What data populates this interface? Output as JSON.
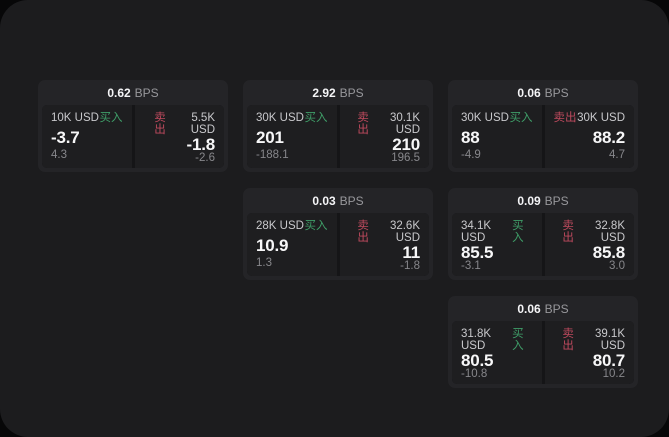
{
  "labels": {
    "bps_unit": "BPS",
    "buy": "买入",
    "sell": "卖出"
  },
  "colors": {
    "page_background": "#070708",
    "panel_background": "#1c1c1e",
    "card_background": "#242427",
    "tile_background": "#1e1e20",
    "buy_accent": "#3f9e68",
    "sell_accent": "#bf4a5e",
    "primary_text": "#f5f5f7",
    "muted_text": "#87878b"
  },
  "cards": [
    {
      "bps": "0.62",
      "buy": {
        "amount": "10K USD",
        "value": "-3.7",
        "sub": "4.3"
      },
      "sell": {
        "amount": "5.5K USD",
        "value": "-1.8",
        "sub": "-2.6"
      }
    },
    {
      "bps": "2.92",
      "buy": {
        "amount": "30K USD",
        "value": "201",
        "sub": "-188.1"
      },
      "sell": {
        "amount": "30.1K USD",
        "value": "210",
        "sub": "196.5"
      }
    },
    {
      "bps": "0.06",
      "buy": {
        "amount": "30K USD",
        "value": "88",
        "sub": "-4.9"
      },
      "sell": {
        "amount": "30K USD",
        "value": "88.2",
        "sub": "4.7"
      }
    },
    {
      "bps": "0.03",
      "buy": {
        "amount": "28K USD",
        "value": "10.9",
        "sub": "1.3"
      },
      "sell": {
        "amount": "32.6K USD",
        "value": "11",
        "sub": "-1.8"
      }
    },
    {
      "bps": "0.09",
      "buy": {
        "amount": "34.1K USD",
        "value": "85.5",
        "sub": "-3.1"
      },
      "sell": {
        "amount": "32.8K USD",
        "value": "85.8",
        "sub": "3.0"
      }
    },
    {
      "bps": "0.06",
      "buy": {
        "amount": "31.8K USD",
        "value": "80.5",
        "sub": "-10.8"
      },
      "sell": {
        "amount": "39.1K USD",
        "value": "80.7",
        "sub": "10.2"
      }
    }
  ]
}
